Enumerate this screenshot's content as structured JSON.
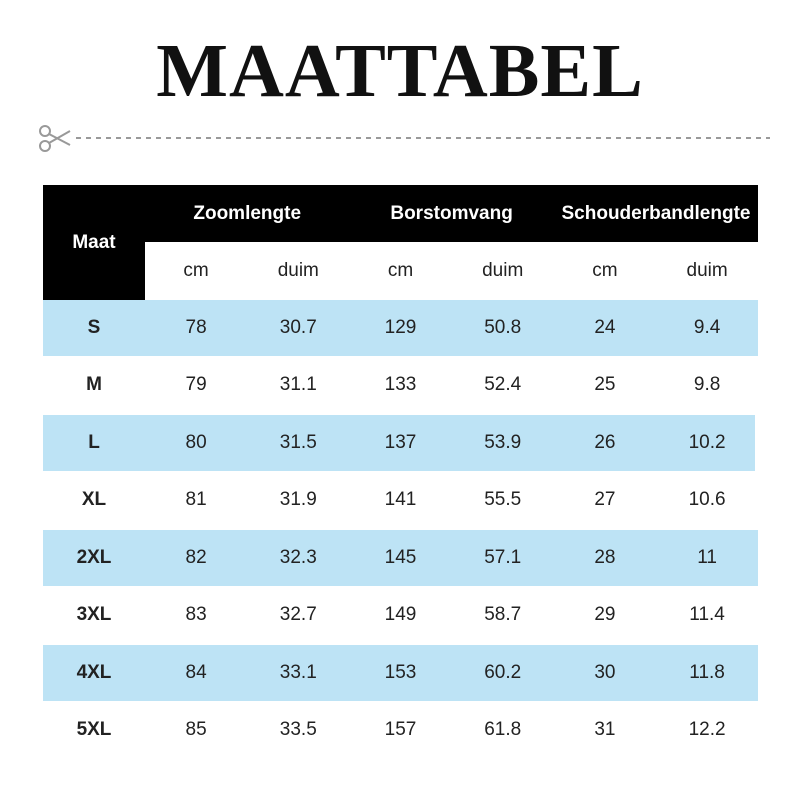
{
  "header": {
    "title": "MAATTABEL"
  },
  "table": {
    "size_header": "Maat",
    "groups": [
      "Zoomlengte",
      "Borstomvang",
      "Schouderbandlengte"
    ],
    "units": [
      "cm",
      "duim",
      "cm",
      "duim",
      "cm",
      "duim"
    ],
    "rows": [
      [
        "S",
        78,
        30.7,
        129,
        50.8,
        24,
        9.4
      ],
      [
        "M",
        79,
        31.1,
        133,
        52.4,
        25,
        9.8
      ],
      [
        "L",
        80,
        31.5,
        137,
        53.9,
        26,
        10.2
      ],
      [
        "XL",
        81,
        31.9,
        141,
        55.5,
        27,
        10.6
      ],
      [
        "2XL",
        82,
        32.3,
        145,
        57.1,
        28,
        11
      ],
      [
        "3XL",
        83,
        32.7,
        149,
        58.7,
        29,
        11.4
      ],
      [
        "4XL",
        84,
        33.1,
        153,
        60.2,
        30,
        11.8
      ],
      [
        "5XL",
        85,
        33.5,
        157,
        61.8,
        31,
        12.2
      ]
    ]
  }
}
